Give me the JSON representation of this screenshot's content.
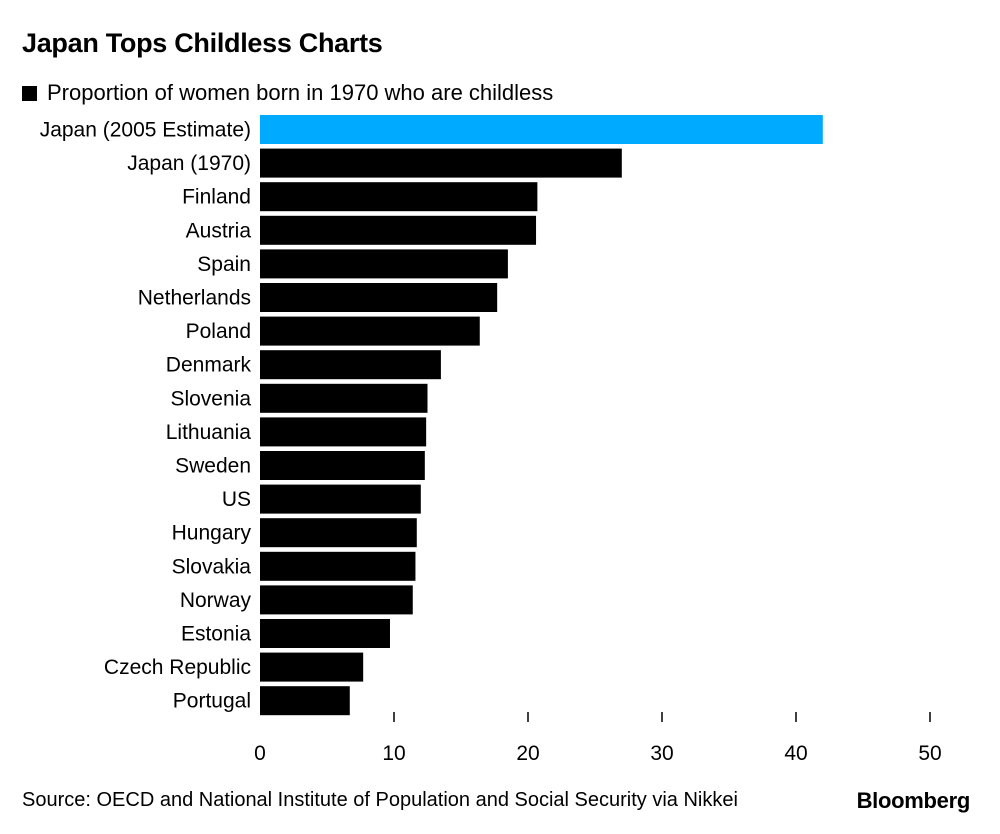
{
  "title": "Japan Tops Childless Charts",
  "legend": {
    "label": "Proportion of women born in 1970 who are childless"
  },
  "source": "Source: OECD and National Institute of Population and Social Security via Nikkei",
  "brand": "Bloomberg",
  "colors": {
    "highlight": "#00AAFF",
    "bar": "#000000",
    "text": "#000000"
  },
  "chart_data": {
    "type": "bar",
    "orientation": "horizontal",
    "title": "Japan Tops Childless Charts",
    "xlabel": "",
    "ylabel": "",
    "xlim": [
      0,
      50
    ],
    "xticks": [
      0,
      10,
      20,
      30,
      40,
      50
    ],
    "categories": [
      "Japan (2005 Estimate)",
      "Japan (1970)",
      "Finland",
      "Austria",
      "Spain",
      "Netherlands",
      "Poland",
      "Denmark",
      "Slovenia",
      "Lithuania",
      "Sweden",
      "US",
      "Hungary",
      "Slovakia",
      "Norway",
      "Estonia",
      "Czech Republic",
      "Portugal"
    ],
    "series": [
      {
        "name": "Proportion of women born in 1970 who are childless",
        "values": [
          42,
          27,
          20.7,
          20.6,
          18.5,
          17.7,
          16.4,
          13.5,
          12.5,
          12.4,
          12.3,
          12.0,
          11.7,
          11.6,
          11.4,
          9.7,
          7.7,
          6.7
        ]
      }
    ],
    "highlight_index": 0
  }
}
